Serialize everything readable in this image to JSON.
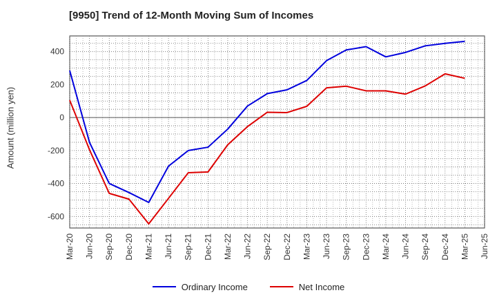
{
  "chart_data": {
    "type": "line",
    "title": "[9950]  Trend of 12-Month Moving Sum of Incomes",
    "xlabel": "",
    "ylabel": "Amount (million yen)",
    "x": [
      "Mar-20",
      "Jun-20",
      "Sep-20",
      "Dec-20",
      "Mar-21",
      "Jun-21",
      "Sep-21",
      "Dec-21",
      "Mar-22",
      "Jun-22",
      "Sep-22",
      "Dec-22",
      "Mar-23",
      "Jun-23",
      "Sep-23",
      "Dec-23",
      "Mar-24",
      "Jun-24",
      "Sep-24",
      "Dec-24",
      "Mar-25",
      "Jun-25"
    ],
    "ylim": [
      -670,
      495
    ],
    "yticks": [
      -600,
      -400,
      -200,
      0,
      200,
      400
    ],
    "grid": true,
    "series": [
      {
        "name": "Ordinary Income",
        "color": "#0000dd",
        "values": [
          285,
          -150,
          -400,
          -455,
          -515,
          -295,
          -200,
          -180,
          -70,
          70,
          145,
          168,
          225,
          345,
          410,
          430,
          368,
          395,
          435,
          450,
          462,
          null
        ]
      },
      {
        "name": "Net Income",
        "color": "#dd0000",
        "values": [
          105,
          -195,
          -460,
          -495,
          -645,
          -490,
          -335,
          -330,
          -165,
          -55,
          32,
          30,
          68,
          180,
          190,
          162,
          162,
          142,
          192,
          265,
          238,
          null
        ]
      }
    ]
  }
}
